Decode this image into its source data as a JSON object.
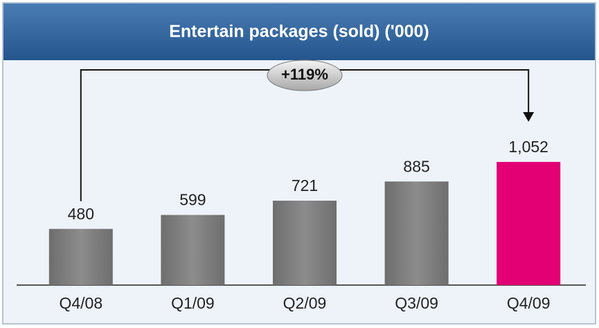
{
  "chart_data": {
    "type": "bar",
    "title": "Entertain packages (sold) ('000)",
    "categories": [
      "Q4/08",
      "Q1/09",
      "Q2/09",
      "Q3/09",
      "Q4/09"
    ],
    "values": [
      480,
      599,
      721,
      885,
      1052
    ],
    "value_labels": [
      "480",
      "599",
      "721",
      "885",
      "1,052"
    ],
    "colors": [
      "#808080",
      "#808080",
      "#808080",
      "#808080",
      "#e20074"
    ],
    "annotation": "+119%"
  }
}
